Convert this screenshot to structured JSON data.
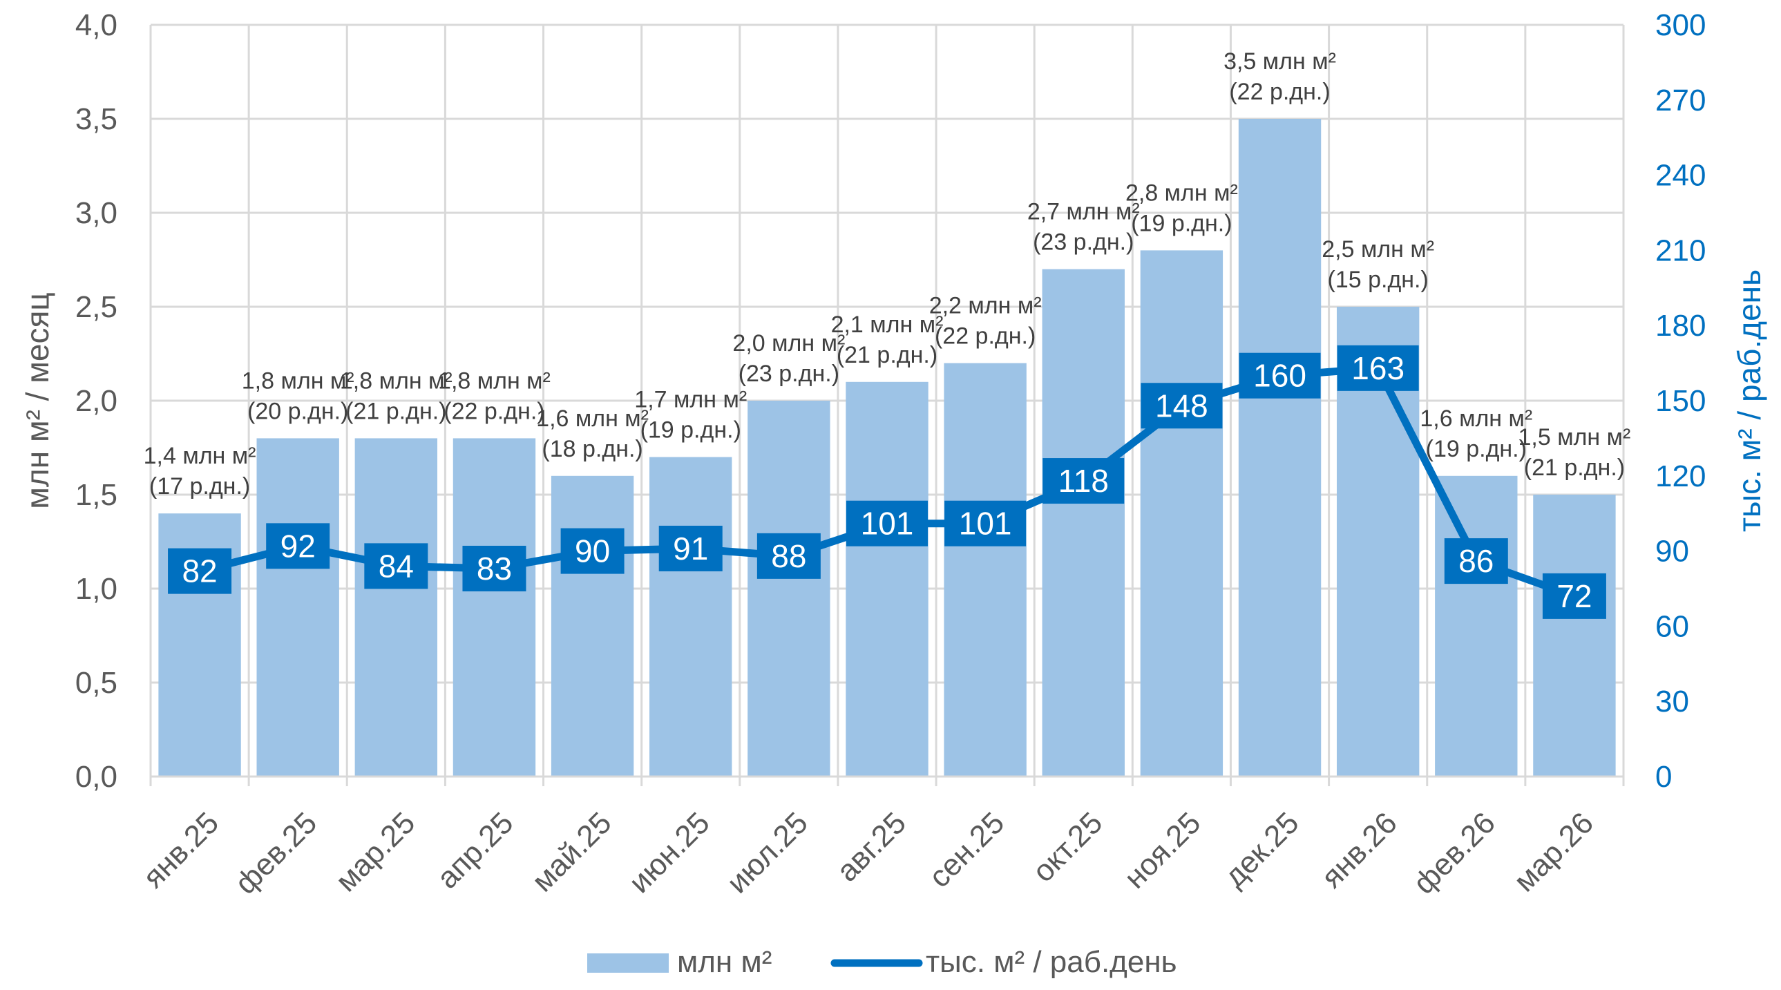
{
  "chart_data": {
    "type": "bar+line",
    "categories": [
      "янв.25",
      "фев.25",
      "мар.25",
      "апр.25",
      "май.25",
      "июн.25",
      "июл.25",
      "авг.25",
      "сен.25",
      "окт.25",
      "ноя.25",
      "дек.25",
      "янв.26",
      "фев.26",
      "мар.26"
    ],
    "series": [
      {
        "name": "млн м²",
        "type": "bar",
        "axis": "left",
        "values": [
          1.4,
          1.8,
          1.8,
          1.8,
          1.6,
          1.7,
          2.0,
          2.1,
          2.2,
          2.7,
          2.8,
          3.5,
          2.5,
          1.6,
          1.5
        ],
        "labels_line1": [
          "1,4 млн м²",
          "1,8 млн м²",
          "1,8 млн м²",
          "1,8 млн м²",
          "1,6 млн м²",
          "1,7 млн м²",
          "2,0 млн м²",
          "2,1 млн м²",
          "2,2 млн м²",
          "2,7 млн м²",
          "2,8 млн м²",
          "3,5 млн м²",
          "2,5 млн м²",
          "1,6 млн м²",
          "1,5 млн м²"
        ],
        "labels_line2": [
          "(17 р.дн.)",
          "(20 р.дн.)",
          "(21 р.дн.)",
          "(22 р.дн.)",
          "(18 р.дн.)",
          "(19 р.дн.)",
          "(23 р.дн.)",
          "(21 р.дн.)",
          "(22 р.дн.)",
          "(23 р.дн.)",
          "(19 р.дн.)",
          "(22 р.дн.)",
          "(15 р.дн.)",
          "(19 р.дн.)",
          "(21 р.дн.)"
        ],
        "color": "#9DC3E6"
      },
      {
        "name": "тыс. м² / раб.день",
        "type": "line",
        "axis": "right",
        "values": [
          82,
          92,
          84,
          83,
          90,
          91,
          88,
          101,
          101,
          118,
          148,
          160,
          163,
          86,
          72
        ],
        "color": "#0070C0"
      }
    ],
    "ylabel_left": "млн м² / месяц",
    "ylabel_right": "тыс. м² / раб.день",
    "ylim_left": [
      0,
      4
    ],
    "yticks_left": [
      "0,0",
      "0,5",
      "1,0",
      "1,5",
      "2,0",
      "2,5",
      "3,0",
      "3,5",
      "4,0"
    ],
    "ylim_right": [
      0,
      300
    ],
    "yticks_right": [
      "0",
      "30",
      "60",
      "90",
      "120",
      "150",
      "180",
      "210",
      "240",
      "270",
      "300"
    ],
    "grid": true,
    "legend_position": "bottom"
  }
}
